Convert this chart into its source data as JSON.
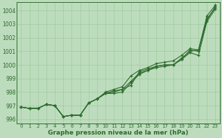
{
  "x": [
    0,
    1,
    2,
    3,
    4,
    5,
    6,
    7,
    8,
    9,
    10,
    11,
    12,
    13,
    14,
    15,
    16,
    17,
    18,
    19,
    20,
    21,
    22,
    23
  ],
  "line1": [
    996.9,
    996.8,
    996.8,
    997.1,
    997.0,
    996.2,
    996.3,
    996.3,
    997.2,
    997.5,
    997.9,
    998.1,
    998.2,
    998.5,
    999.5,
    999.7,
    999.9,
    1000.0,
    1000.0,
    1000.5,
    1001.0,
    1001.1,
    1003.3,
    1004.3
  ],
  "line2": [
    996.9,
    996.8,
    996.8,
    997.1,
    997.0,
    996.2,
    996.3,
    996.3,
    997.2,
    997.5,
    997.9,
    997.9,
    998.0,
    998.7,
    999.3,
    999.6,
    999.8,
    999.9,
    1000.0,
    1000.4,
    1000.9,
    1000.7,
    1003.2,
    1004.1
  ],
  "line3": [
    996.9,
    996.8,
    996.8,
    997.1,
    997.0,
    996.2,
    996.3,
    996.3,
    997.2,
    997.5,
    997.9,
    998.0,
    998.2,
    998.8,
    999.4,
    999.6,
    999.9,
    1000.0,
    1000.0,
    1000.4,
    1001.1,
    1001.0,
    1003.4,
    1004.2
  ],
  "line4": [
    996.9,
    996.8,
    996.8,
    997.1,
    997.0,
    996.2,
    996.3,
    996.3,
    997.2,
    997.5,
    998.0,
    998.2,
    998.4,
    999.2,
    999.6,
    999.8,
    1000.1,
    1000.2,
    1000.3,
    1000.7,
    1001.2,
    1001.1,
    1003.6,
    1004.4
  ],
  "line_color": "#2d6a2d",
  "bg_color": "#bddcbd",
  "grid_color": "#9ccc9c",
  "xlabel": "Graphe pression niveau de la mer (hPa)",
  "ylim": [
    995.7,
    1004.6
  ],
  "xlim": [
    -0.5,
    23.5
  ],
  "yticks": [
    996,
    997,
    998,
    999,
    1000,
    1001,
    1002,
    1003,
    1004
  ],
  "xticks": [
    0,
    1,
    2,
    3,
    4,
    5,
    6,
    7,
    8,
    9,
    10,
    11,
    12,
    13,
    14,
    15,
    16,
    17,
    18,
    19,
    20,
    21,
    22,
    23
  ]
}
